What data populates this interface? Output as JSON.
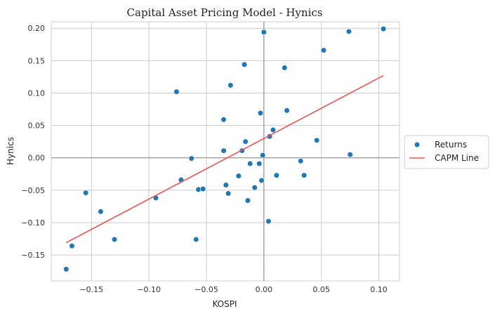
{
  "chart_data": {
    "type": "scatter",
    "title": "Capital Asset Pricing Model - Hynics",
    "xlabel": "KOSPI",
    "ylabel": "Hynics",
    "xlim": [
      -0.185,
      0.118
    ],
    "ylim": [
      -0.19,
      0.21
    ],
    "xticks": [
      -0.15,
      -0.1,
      -0.05,
      0.0,
      0.05,
      0.1
    ],
    "xtick_labels": [
      "−0.15",
      "−0.10",
      "−0.05",
      "0.00",
      "0.05",
      "0.10"
    ],
    "yticks": [
      -0.15,
      -0.1,
      -0.05,
      0.0,
      0.05,
      0.1,
      0.15,
      0.2
    ],
    "ytick_labels": [
      "−0.15",
      "−0.10",
      "−0.05",
      "0.00",
      "0.05",
      "0.10",
      "0.15",
      "0.20"
    ],
    "grid": true,
    "legend": {
      "placement": "right-outside"
    },
    "series": [
      {
        "name": "Returns",
        "type": "scatter",
        "color": "#1f77b4",
        "points": [
          [
            -0.172,
            -0.172
          ],
          [
            -0.167,
            -0.136
          ],
          [
            -0.155,
            -0.054
          ],
          [
            -0.142,
            -0.083
          ],
          [
            -0.13,
            -0.126
          ],
          [
            -0.094,
            -0.062
          ],
          [
            -0.076,
            0.102
          ],
          [
            -0.072,
            -0.034
          ],
          [
            -0.063,
            -0.001
          ],
          [
            -0.059,
            -0.126
          ],
          [
            -0.057,
            -0.049
          ],
          [
            -0.053,
            -0.048
          ],
          [
            -0.035,
            0.059
          ],
          [
            -0.035,
            0.011
          ],
          [
            -0.033,
            -0.042
          ],
          [
            -0.031,
            -0.055
          ],
          [
            -0.029,
            0.112
          ],
          [
            -0.022,
            -0.028
          ],
          [
            -0.019,
            0.011
          ],
          [
            -0.017,
            0.144
          ],
          [
            -0.016,
            0.025
          ],
          [
            -0.014,
            -0.066
          ],
          [
            -0.012,
            -0.009
          ],
          [
            -0.008,
            -0.046
          ],
          [
            -0.004,
            -0.009
          ],
          [
            -0.003,
            0.069
          ],
          [
            -0.002,
            -0.035
          ],
          [
            -0.001,
            0.004
          ],
          [
            0.0,
            0.194
          ],
          [
            0.004,
            -0.098
          ],
          [
            0.005,
            0.033
          ],
          [
            0.008,
            0.043
          ],
          [
            0.011,
            -0.027
          ],
          [
            0.018,
            0.139
          ],
          [
            0.02,
            0.073
          ],
          [
            0.032,
            -0.005
          ],
          [
            0.035,
            -0.027
          ],
          [
            0.046,
            0.027
          ],
          [
            0.052,
            0.166
          ],
          [
            0.074,
            0.195
          ],
          [
            0.075,
            0.005
          ],
          [
            0.104,
            0.199
          ]
        ]
      },
      {
        "name": "CAPM Line",
        "type": "line",
        "color": "#f0504f",
        "points": [
          [
            -0.172,
            -0.131
          ],
          [
            0.104,
            0.127
          ]
        ]
      }
    ]
  }
}
